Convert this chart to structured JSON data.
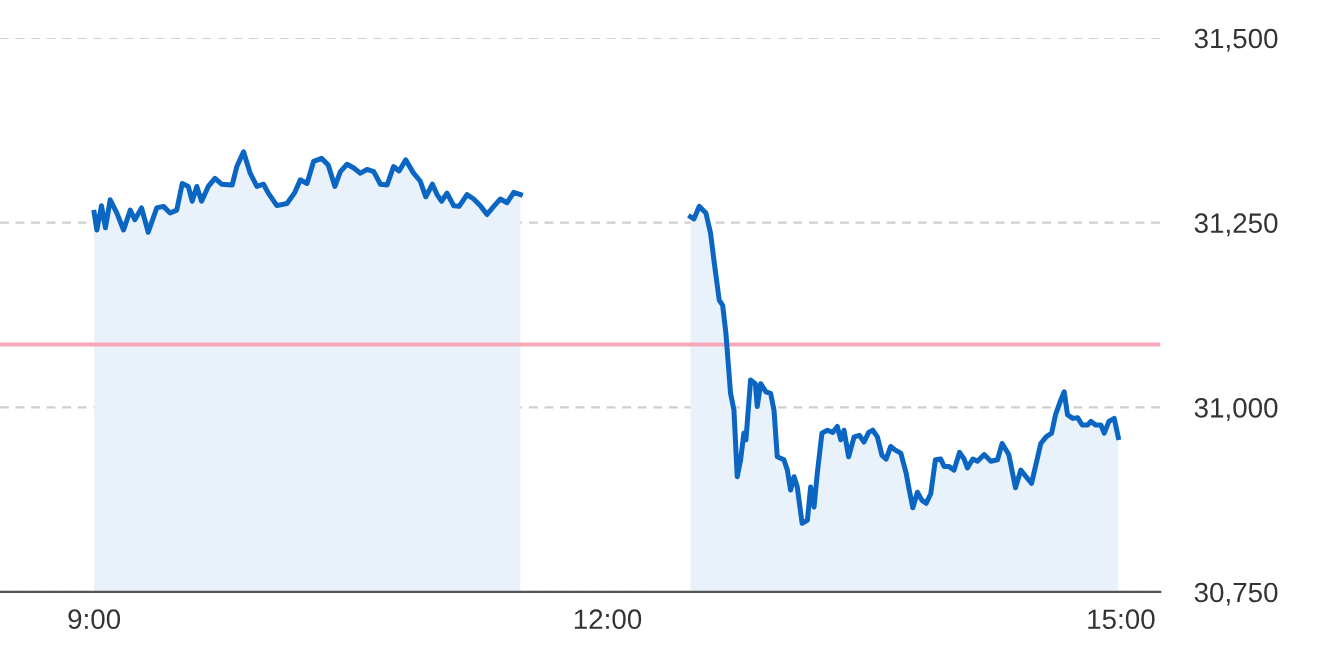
{
  "chart_data": {
    "type": "area",
    "xlim": [
      8.45,
      15.23
    ],
    "xticks": [
      {
        "value": 9,
        "label": "9:00"
      },
      {
        "value": 12,
        "label": "12:00"
      },
      {
        "value": 15,
        "label": "15:00"
      }
    ],
    "ylim": [
      30750,
      31500
    ],
    "yticks": [
      {
        "value": 30750,
        "label": "30,750"
      },
      {
        "value": 31000,
        "label": "31,000"
      },
      {
        "value": 31250,
        "label": "31,250"
      },
      {
        "value": 31500,
        "label": "31,500"
      }
    ],
    "grid": "y",
    "ref_lines": [
      {
        "axis": "y",
        "value": 31085,
        "label": null,
        "color": "#f7a8b8"
      }
    ],
    "series": [
      {
        "color": "#0a66c2",
        "x": [
          9.0,
          9.016,
          9.043,
          9.066,
          9.094,
          9.133,
          9.172,
          9.211,
          9.238,
          9.277,
          9.316,
          9.366,
          9.405,
          9.444,
          9.483,
          9.515,
          9.55,
          9.573,
          9.6,
          9.628,
          9.667,
          9.706,
          9.745,
          9.807,
          9.834,
          9.873,
          9.912,
          9.951,
          9.99,
          10.018,
          10.068,
          10.127,
          10.173,
          10.205,
          10.244,
          10.283,
          10.329,
          10.368,
          10.407,
          10.439,
          10.478,
          10.517,
          10.556,
          10.595,
          10.634,
          10.673,
          10.712,
          10.75,
          10.782,
          10.821,
          10.867,
          10.906,
          10.938,
          10.977,
          11.004,
          11.031,
          11.062,
          11.101,
          11.133,
          11.179,
          11.218,
          11.257,
          11.296,
          11.335,
          11.374,
          11.413,
          11.452,
          11.491
        ],
        "values": [
          31264,
          31240,
          31273,
          31243,
          31281,
          31263,
          31240,
          31267,
          31254,
          31270,
          31237,
          31270,
          31272,
          31263,
          31267,
          31303,
          31299,
          31279,
          31299,
          31279,
          31299,
          31310,
          31302,
          31301,
          31326,
          31346,
          31317,
          31299,
          31302,
          31290,
          31273,
          31276,
          31291,
          31308,
          31303,
          31333,
          31337,
          31328,
          31299,
          31319,
          31329,
          31324,
          31317,
          31322,
          31319,
          31302,
          31301,
          31326,
          31320,
          31335,
          31317,
          31306,
          31285,
          31302,
          31288,
          31279,
          31290,
          31273,
          31272,
          31288,
          31282,
          31273,
          31261,
          31272,
          31282,
          31277,
          31291,
          31288
        ]
      },
      {
        "color": "#0a66c2",
        "x": [
          12.485,
          12.505,
          12.536,
          12.575,
          12.602,
          12.622,
          12.653,
          12.673,
          12.692,
          12.719,
          12.739,
          12.758,
          12.778,
          12.797,
          12.809,
          12.836,
          12.864,
          12.875,
          12.895,
          12.926,
          12.953,
          12.973,
          12.992,
          13.031,
          13.051,
          13.07,
          13.09,
          13.109,
          13.137,
          13.168,
          13.187,
          13.207,
          13.226,
          13.253,
          13.285,
          13.316,
          13.343,
          13.363,
          13.382,
          13.409,
          13.441,
          13.472,
          13.499,
          13.526,
          13.55,
          13.577,
          13.604,
          13.628,
          13.655,
          13.682,
          13.714,
          13.745,
          13.76,
          13.784,
          13.811,
          13.838,
          13.862,
          13.889,
          13.916,
          13.947,
          13.967,
          13.994,
          14.025,
          14.057,
          14.084,
          14.103,
          14.135,
          14.162,
          14.201,
          14.24,
          14.279,
          14.306,
          14.345,
          14.384,
          14.415,
          14.446,
          14.478,
          14.501,
          14.532,
          14.563,
          14.595,
          14.618,
          14.649,
          14.669,
          14.688,
          14.719,
          14.747,
          14.774,
          14.805,
          14.825,
          14.852,
          14.883,
          14.903,
          14.93,
          14.961,
          14.985
        ],
        "values": [
          31258,
          31255,
          31272,
          31263,
          31236,
          31199,
          31145,
          31138,
          31100,
          31019,
          30996,
          30906,
          30929,
          30965,
          30956,
          31037,
          31032,
          31001,
          31032,
          31021,
          31019,
          30996,
          30933,
          30929,
          30915,
          30888,
          30906,
          30892,
          30843,
          30847,
          30892,
          30865,
          30911,
          30965,
          30969,
          30966,
          30974,
          30956,
          30969,
          30933,
          30960,
          30962,
          30953,
          30966,
          30969,
          30960,
          30935,
          30930,
          30947,
          30942,
          30938,
          30911,
          30892,
          30864,
          30885,
          30874,
          30870,
          30883,
          30929,
          30930,
          30920,
          30920,
          30915,
          30939,
          30930,
          30918,
          30930,
          30927,
          30936,
          30927,
          30929,
          30951,
          30936,
          30891,
          30915,
          30906,
          30897,
          30920,
          30951,
          30960,
          30965,
          30990,
          31010,
          31021,
          30990,
          30985,
          30986,
          30976,
          30976,
          30981,
          30976,
          30976,
          30965,
          30981,
          30985,
          30959
        ]
      }
    ]
  }
}
